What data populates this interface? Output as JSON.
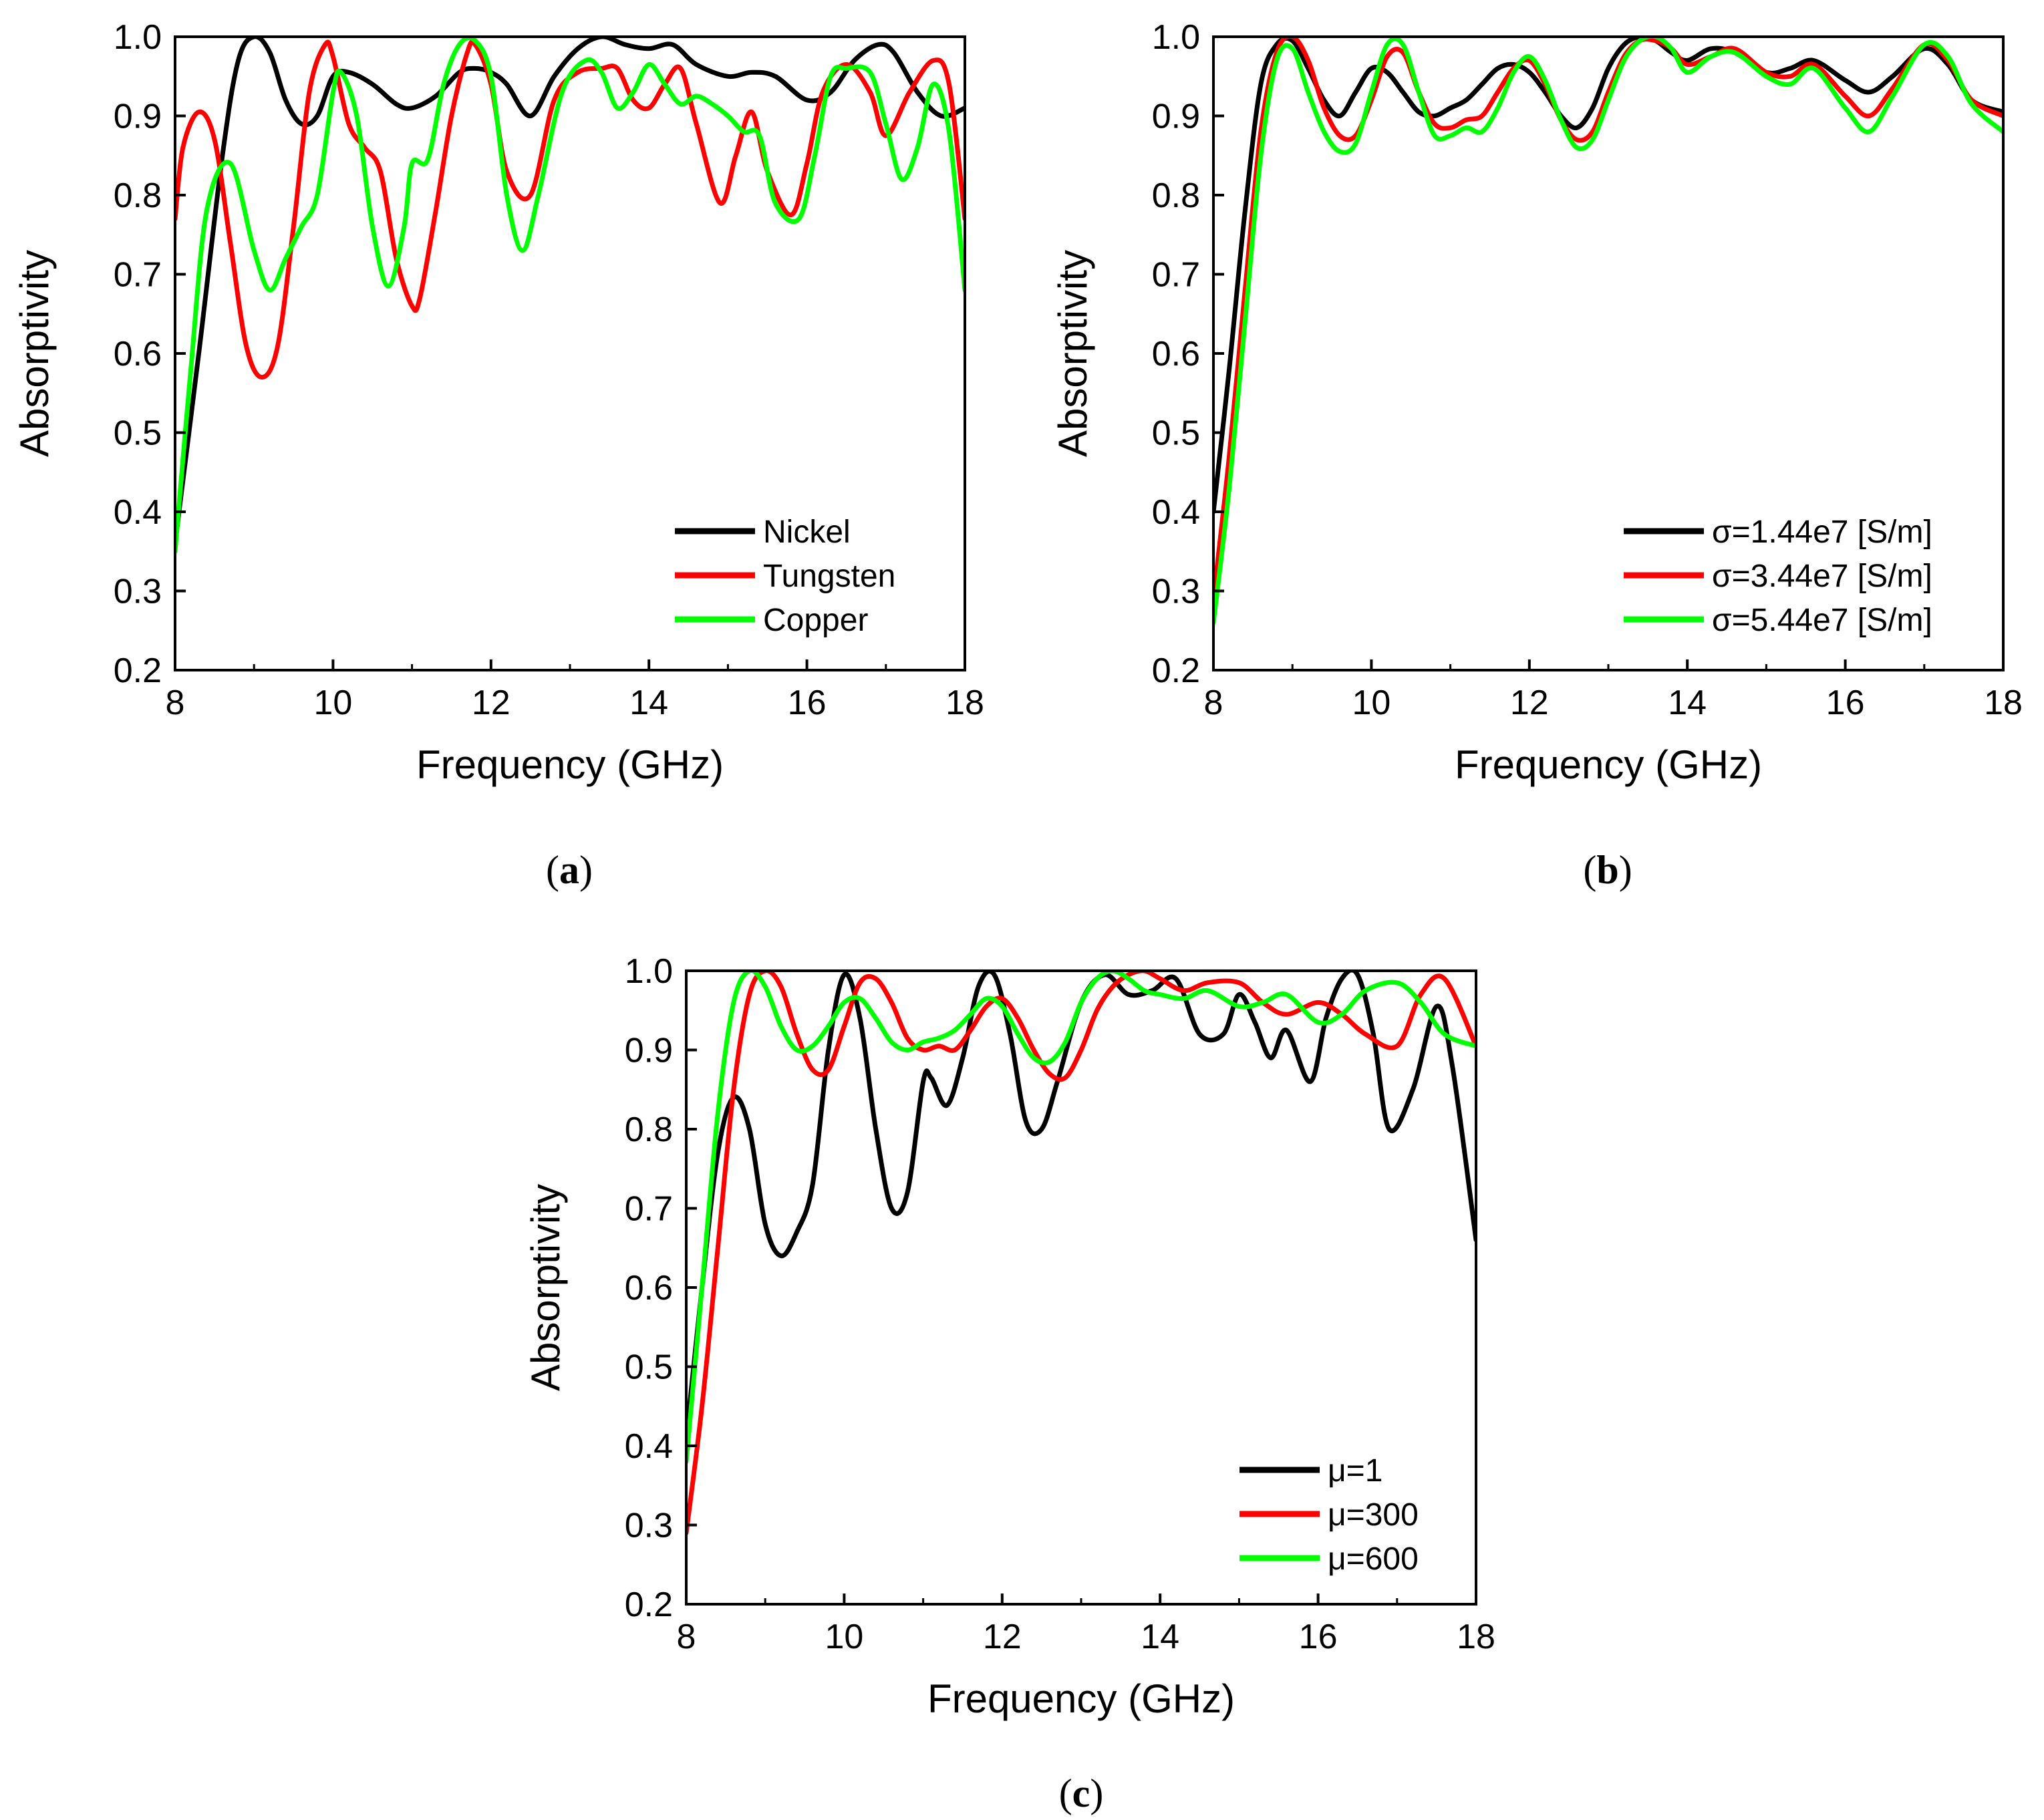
{
  "chart_data": [
    {
      "panel": "a",
      "type": "line",
      "xlabel": "Frequency (GHz)",
      "ylabel": "Absorptivity",
      "xlim": [
        8,
        18
      ],
      "ylim": [
        0.2,
        1.0
      ],
      "xticks": [
        8,
        10,
        12,
        14,
        16,
        18
      ],
      "yticks": [
        0.2,
        0.3,
        0.4,
        0.5,
        0.6,
        0.7,
        0.8,
        0.9,
        1.0
      ],
      "legend_position": "bottom-right",
      "series": [
        {
          "name": "Nickel",
          "color": "#000000",
          "x": [
            8,
            8.3,
            8.6,
            8.8,
            9.0,
            9.2,
            9.4,
            9.6,
            9.8,
            10.0,
            10.2,
            10.5,
            10.8,
            11.0,
            11.3,
            11.6,
            11.8,
            12.0,
            12.2,
            12.5,
            12.8,
            13.1,
            13.4,
            13.7,
            14.0,
            14.3,
            14.6,
            15.0,
            15.3,
            15.6,
            16.0,
            16.3,
            16.6,
            16.9,
            17.1,
            17.4,
            17.7,
            18.0
          ],
          "y": [
            0.36,
            0.6,
            0.85,
            0.97,
            1.0,
            0.98,
            0.92,
            0.89,
            0.9,
            0.95,
            0.955,
            0.94,
            0.915,
            0.91,
            0.925,
            0.955,
            0.96,
            0.955,
            0.94,
            0.9,
            0.95,
            0.985,
            1.0,
            0.99,
            0.985,
            0.99,
            0.965,
            0.95,
            0.955,
            0.95,
            0.92,
            0.93,
            0.97,
            0.99,
            0.98,
            0.93,
            0.9,
            0.91
          ]
        },
        {
          "name": "Tungsten",
          "color": "#ff0000",
          "x": [
            8,
            8.1,
            8.3,
            8.5,
            8.7,
            8.9,
            9.1,
            9.3,
            9.5,
            9.7,
            9.9,
            10.0,
            10.2,
            10.4,
            10.6,
            10.8,
            11.0,
            11.1,
            11.3,
            11.5,
            11.7,
            11.8,
            12.0,
            12.2,
            12.5,
            12.8,
            13.1,
            13.4,
            13.6,
            13.8,
            14.0,
            14.2,
            14.4,
            14.6,
            14.9,
            15.1,
            15.3,
            15.5,
            15.8,
            16.0,
            16.2,
            16.5,
            16.8,
            17.0,
            17.3,
            17.6,
            17.8,
            18.0
          ],
          "y": [
            0.77,
            0.86,
            0.905,
            0.87,
            0.74,
            0.61,
            0.57,
            0.61,
            0.76,
            0.93,
            0.99,
            0.975,
            0.89,
            0.86,
            0.83,
            0.72,
            0.66,
            0.67,
            0.78,
            0.9,
            0.98,
            0.99,
            0.94,
            0.83,
            0.8,
            0.92,
            0.955,
            0.96,
            0.96,
            0.92,
            0.91,
            0.94,
            0.96,
            0.89,
            0.79,
            0.85,
            0.905,
            0.83,
            0.775,
            0.84,
            0.93,
            0.965,
            0.93,
            0.875,
            0.93,
            0.97,
            0.94,
            0.77
          ]
        },
        {
          "name": "Copper",
          "color": "#00ff00",
          "x": [
            8,
            8.2,
            8.4,
            8.7,
            9.0,
            9.2,
            9.4,
            9.6,
            9.8,
            10.0,
            10.1,
            10.3,
            10.5,
            10.7,
            10.9,
            11.0,
            11.2,
            11.4,
            11.6,
            11.8,
            12.0,
            12.2,
            12.4,
            12.6,
            12.9,
            13.2,
            13.4,
            13.6,
            13.8,
            14.0,
            14.2,
            14.4,
            14.6,
            14.8,
            15.0,
            15.2,
            15.4,
            15.6,
            15.9,
            16.1,
            16.3,
            16.5,
            16.8,
            17.0,
            17.2,
            17.4,
            17.6,
            17.8,
            18.0
          ],
          "y": [
            0.35,
            0.58,
            0.78,
            0.84,
            0.73,
            0.68,
            0.72,
            0.76,
            0.8,
            0.93,
            0.955,
            0.9,
            0.76,
            0.685,
            0.76,
            0.84,
            0.845,
            0.94,
            0.99,
            0.995,
            0.95,
            0.8,
            0.73,
            0.8,
            0.93,
            0.97,
            0.955,
            0.91,
            0.93,
            0.965,
            0.94,
            0.915,
            0.925,
            0.915,
            0.9,
            0.88,
            0.875,
            0.79,
            0.77,
            0.85,
            0.95,
            0.96,
            0.955,
            0.89,
            0.82,
            0.86,
            0.94,
            0.88,
            0.68
          ]
        }
      ]
    },
    {
      "panel": "b",
      "type": "line",
      "xlabel": "Frequency (GHz)",
      "ylabel": "Absorptivity",
      "xlim": [
        8,
        18
      ],
      "ylim": [
        0.2,
        1.0
      ],
      "xticks": [
        8,
        10,
        12,
        14,
        16,
        18
      ],
      "yticks": [
        0.2,
        0.3,
        0.4,
        0.5,
        0.6,
        0.7,
        0.8,
        0.9,
        1.0
      ],
      "legend_position": "bottom-right",
      "series": [
        {
          "name": "σ=1.44e7 [S/m]",
          "color": "#000000",
          "x": [
            8,
            8.2,
            8.4,
            8.6,
            8.8,
            9.0,
            9.2,
            9.4,
            9.6,
            9.8,
            10.0,
            10.2,
            10.4,
            10.6,
            10.8,
            11.0,
            11.2,
            11.4,
            11.6,
            11.8,
            12.0,
            12.2,
            12.4,
            12.6,
            12.8,
            13.0,
            13.2,
            13.4,
            13.6,
            13.8,
            14.0,
            14.3,
            14.6,
            15.0,
            15.3,
            15.6,
            16.0,
            16.3,
            16.6,
            17.0,
            17.3,
            17.6,
            18.0
          ],
          "y": [
            0.4,
            0.58,
            0.78,
            0.94,
            0.99,
            0.995,
            0.96,
            0.92,
            0.9,
            0.93,
            0.96,
            0.955,
            0.93,
            0.905,
            0.9,
            0.91,
            0.92,
            0.94,
            0.96,
            0.965,
            0.955,
            0.93,
            0.9,
            0.885,
            0.91,
            0.96,
            0.99,
            1.0,
            0.995,
            0.98,
            0.97,
            0.985,
            0.98,
            0.955,
            0.96,
            0.97,
            0.945,
            0.93,
            0.95,
            0.985,
            0.965,
            0.92,
            0.905
          ]
        },
        {
          "name": "σ=3.44e7 [S/m]",
          "color": "#ff0000",
          "x": [
            8,
            8.2,
            8.4,
            8.6,
            8.8,
            9.0,
            9.2,
            9.4,
            9.6,
            9.8,
            10.0,
            10.2,
            10.4,
            10.6,
            10.8,
            11.0,
            11.2,
            11.4,
            11.6,
            11.8,
            12.0,
            12.2,
            12.4,
            12.6,
            12.8,
            13.0,
            13.2,
            13.4,
            13.6,
            13.8,
            14.0,
            14.3,
            14.6,
            15.0,
            15.3,
            15.6,
            16.0,
            16.3,
            16.6,
            17.0,
            17.3,
            17.6,
            18.0
          ],
          "y": [
            0.29,
            0.47,
            0.68,
            0.88,
            0.98,
            1.0,
            0.97,
            0.91,
            0.875,
            0.875,
            0.92,
            0.975,
            0.98,
            0.93,
            0.89,
            0.885,
            0.895,
            0.9,
            0.93,
            0.96,
            0.97,
            0.94,
            0.895,
            0.87,
            0.88,
            0.93,
            0.975,
            0.995,
            0.995,
            0.985,
            0.965,
            0.975,
            0.985,
            0.955,
            0.95,
            0.965,
            0.925,
            0.9,
            0.935,
            0.99,
            0.97,
            0.92,
            0.9
          ]
        },
        {
          "name": "σ=5.44e7 [S/m]",
          "color": "#00ff00",
          "x": [
            8,
            8.2,
            8.4,
            8.6,
            8.8,
            9.0,
            9.2,
            9.4,
            9.6,
            9.8,
            10.0,
            10.2,
            10.4,
            10.6,
            10.8,
            11.0,
            11.2,
            11.4,
            11.6,
            11.8,
            12.0,
            12.2,
            12.4,
            12.6,
            12.8,
            13.0,
            13.2,
            13.4,
            13.6,
            13.8,
            14.0,
            14.3,
            14.6,
            15.0,
            15.3,
            15.6,
            16.0,
            16.3,
            16.6,
            17.0,
            17.3,
            17.6,
            18.0
          ],
          "y": [
            0.26,
            0.43,
            0.64,
            0.85,
            0.97,
            0.985,
            0.93,
            0.88,
            0.855,
            0.865,
            0.93,
            0.99,
            0.99,
            0.93,
            0.875,
            0.875,
            0.885,
            0.88,
            0.91,
            0.955,
            0.975,
            0.945,
            0.895,
            0.86,
            0.87,
            0.92,
            0.97,
            0.995,
            1.0,
            0.985,
            0.955,
            0.975,
            0.98,
            0.95,
            0.94,
            0.96,
            0.91,
            0.88,
            0.925,
            0.99,
            0.975,
            0.915,
            0.88
          ]
        }
      ]
    },
    {
      "panel": "c",
      "type": "line",
      "xlabel": "Frequency (GHz)",
      "ylabel": "Absorptivity",
      "xlim": [
        8,
        18
      ],
      "ylim": [
        0.2,
        1.0
      ],
      "xticks": [
        8,
        10,
        12,
        14,
        16,
        18
      ],
      "yticks": [
        0.2,
        0.3,
        0.4,
        0.5,
        0.6,
        0.7,
        0.8,
        0.9,
        1.0
      ],
      "legend_position": "bottom-right",
      "series": [
        {
          "name": "μ=1",
          "color": "#000000",
          "x": [
            8,
            8.2,
            8.4,
            8.6,
            8.8,
            9.0,
            9.2,
            9.4,
            9.6,
            9.8,
            10.0,
            10.2,
            10.4,
            10.6,
            10.8,
            11.0,
            11.1,
            11.3,
            11.5,
            11.7,
            11.9,
            12.1,
            12.3,
            12.5,
            12.7,
            13.0,
            13.3,
            13.6,
            13.9,
            14.2,
            14.5,
            14.8,
            15.0,
            15.2,
            15.4,
            15.6,
            15.9,
            16.1,
            16.3,
            16.5,
            16.7,
            16.9,
            17.2,
            17.5,
            17.7,
            18.0
          ],
          "y": [
            0.41,
            0.6,
            0.77,
            0.84,
            0.8,
            0.68,
            0.64,
            0.67,
            0.73,
            0.9,
            0.995,
            0.94,
            0.8,
            0.7,
            0.72,
            0.86,
            0.865,
            0.83,
            0.89,
            0.98,
            0.995,
            0.92,
            0.81,
            0.8,
            0.86,
            0.96,
            0.995,
            0.97,
            0.975,
            0.99,
            0.92,
            0.92,
            0.97,
            0.935,
            0.89,
            0.925,
            0.86,
            0.94,
            0.99,
            0.995,
            0.92,
            0.8,
            0.85,
            0.955,
            0.88,
            0.66
          ]
        },
        {
          "name": "μ=300",
          "color": "#ff0000",
          "x": [
            8,
            8.2,
            8.4,
            8.6,
            8.8,
            9.0,
            9.2,
            9.4,
            9.6,
            9.8,
            10.0,
            10.2,
            10.4,
            10.6,
            10.8,
            11.0,
            11.2,
            11.4,
            11.6,
            11.8,
            12.0,
            12.2,
            12.4,
            12.6,
            12.8,
            13.0,
            13.2,
            13.4,
            13.6,
            13.8,
            14.0,
            14.3,
            14.6,
            15.0,
            15.3,
            15.6,
            16.0,
            16.3,
            16.6,
            17.0,
            17.3,
            17.6,
            18.0
          ],
          "y": [
            0.29,
            0.45,
            0.65,
            0.85,
            0.97,
            1.0,
            0.98,
            0.92,
            0.875,
            0.875,
            0.93,
            0.985,
            0.99,
            0.96,
            0.915,
            0.9,
            0.905,
            0.9,
            0.925,
            0.955,
            0.965,
            0.94,
            0.9,
            0.87,
            0.865,
            0.9,
            0.95,
            0.98,
            0.995,
            1.0,
            0.99,
            0.975,
            0.985,
            0.985,
            0.96,
            0.945,
            0.96,
            0.945,
            0.92,
            0.905,
            0.97,
            0.99,
            0.905
          ]
        },
        {
          "name": "μ=600",
          "color": "#00ff00",
          "x": [
            8,
            8.2,
            8.4,
            8.6,
            8.8,
            9.0,
            9.2,
            9.4,
            9.6,
            9.8,
            10.0,
            10.2,
            10.4,
            10.6,
            10.8,
            11.0,
            11.2,
            11.4,
            11.6,
            11.8,
            12.0,
            12.2,
            12.4,
            12.6,
            12.8,
            13.0,
            13.2,
            13.4,
            13.6,
            13.8,
            14.0,
            14.3,
            14.6,
            15.0,
            15.3,
            15.6,
            16.0,
            16.3,
            16.6,
            17.0,
            17.3,
            17.6,
            18.0
          ],
          "y": [
            0.38,
            0.6,
            0.82,
            0.96,
            1.0,
            0.98,
            0.93,
            0.9,
            0.905,
            0.93,
            0.96,
            0.965,
            0.94,
            0.91,
            0.9,
            0.91,
            0.915,
            0.925,
            0.945,
            0.965,
            0.955,
            0.92,
            0.89,
            0.885,
            0.91,
            0.96,
            0.99,
            1.0,
            0.99,
            0.975,
            0.97,
            0.965,
            0.975,
            0.955,
            0.96,
            0.97,
            0.935,
            0.945,
            0.975,
            0.985,
            0.96,
            0.92,
            0.905
          ]
        }
      ]
    }
  ],
  "panel_labels": [
    {
      "open": "(",
      "letter": "a",
      "close": ")"
    },
    {
      "open": "(",
      "letter": "b",
      "close": ")"
    },
    {
      "open": "(",
      "letter": "c",
      "close": ")"
    }
  ]
}
